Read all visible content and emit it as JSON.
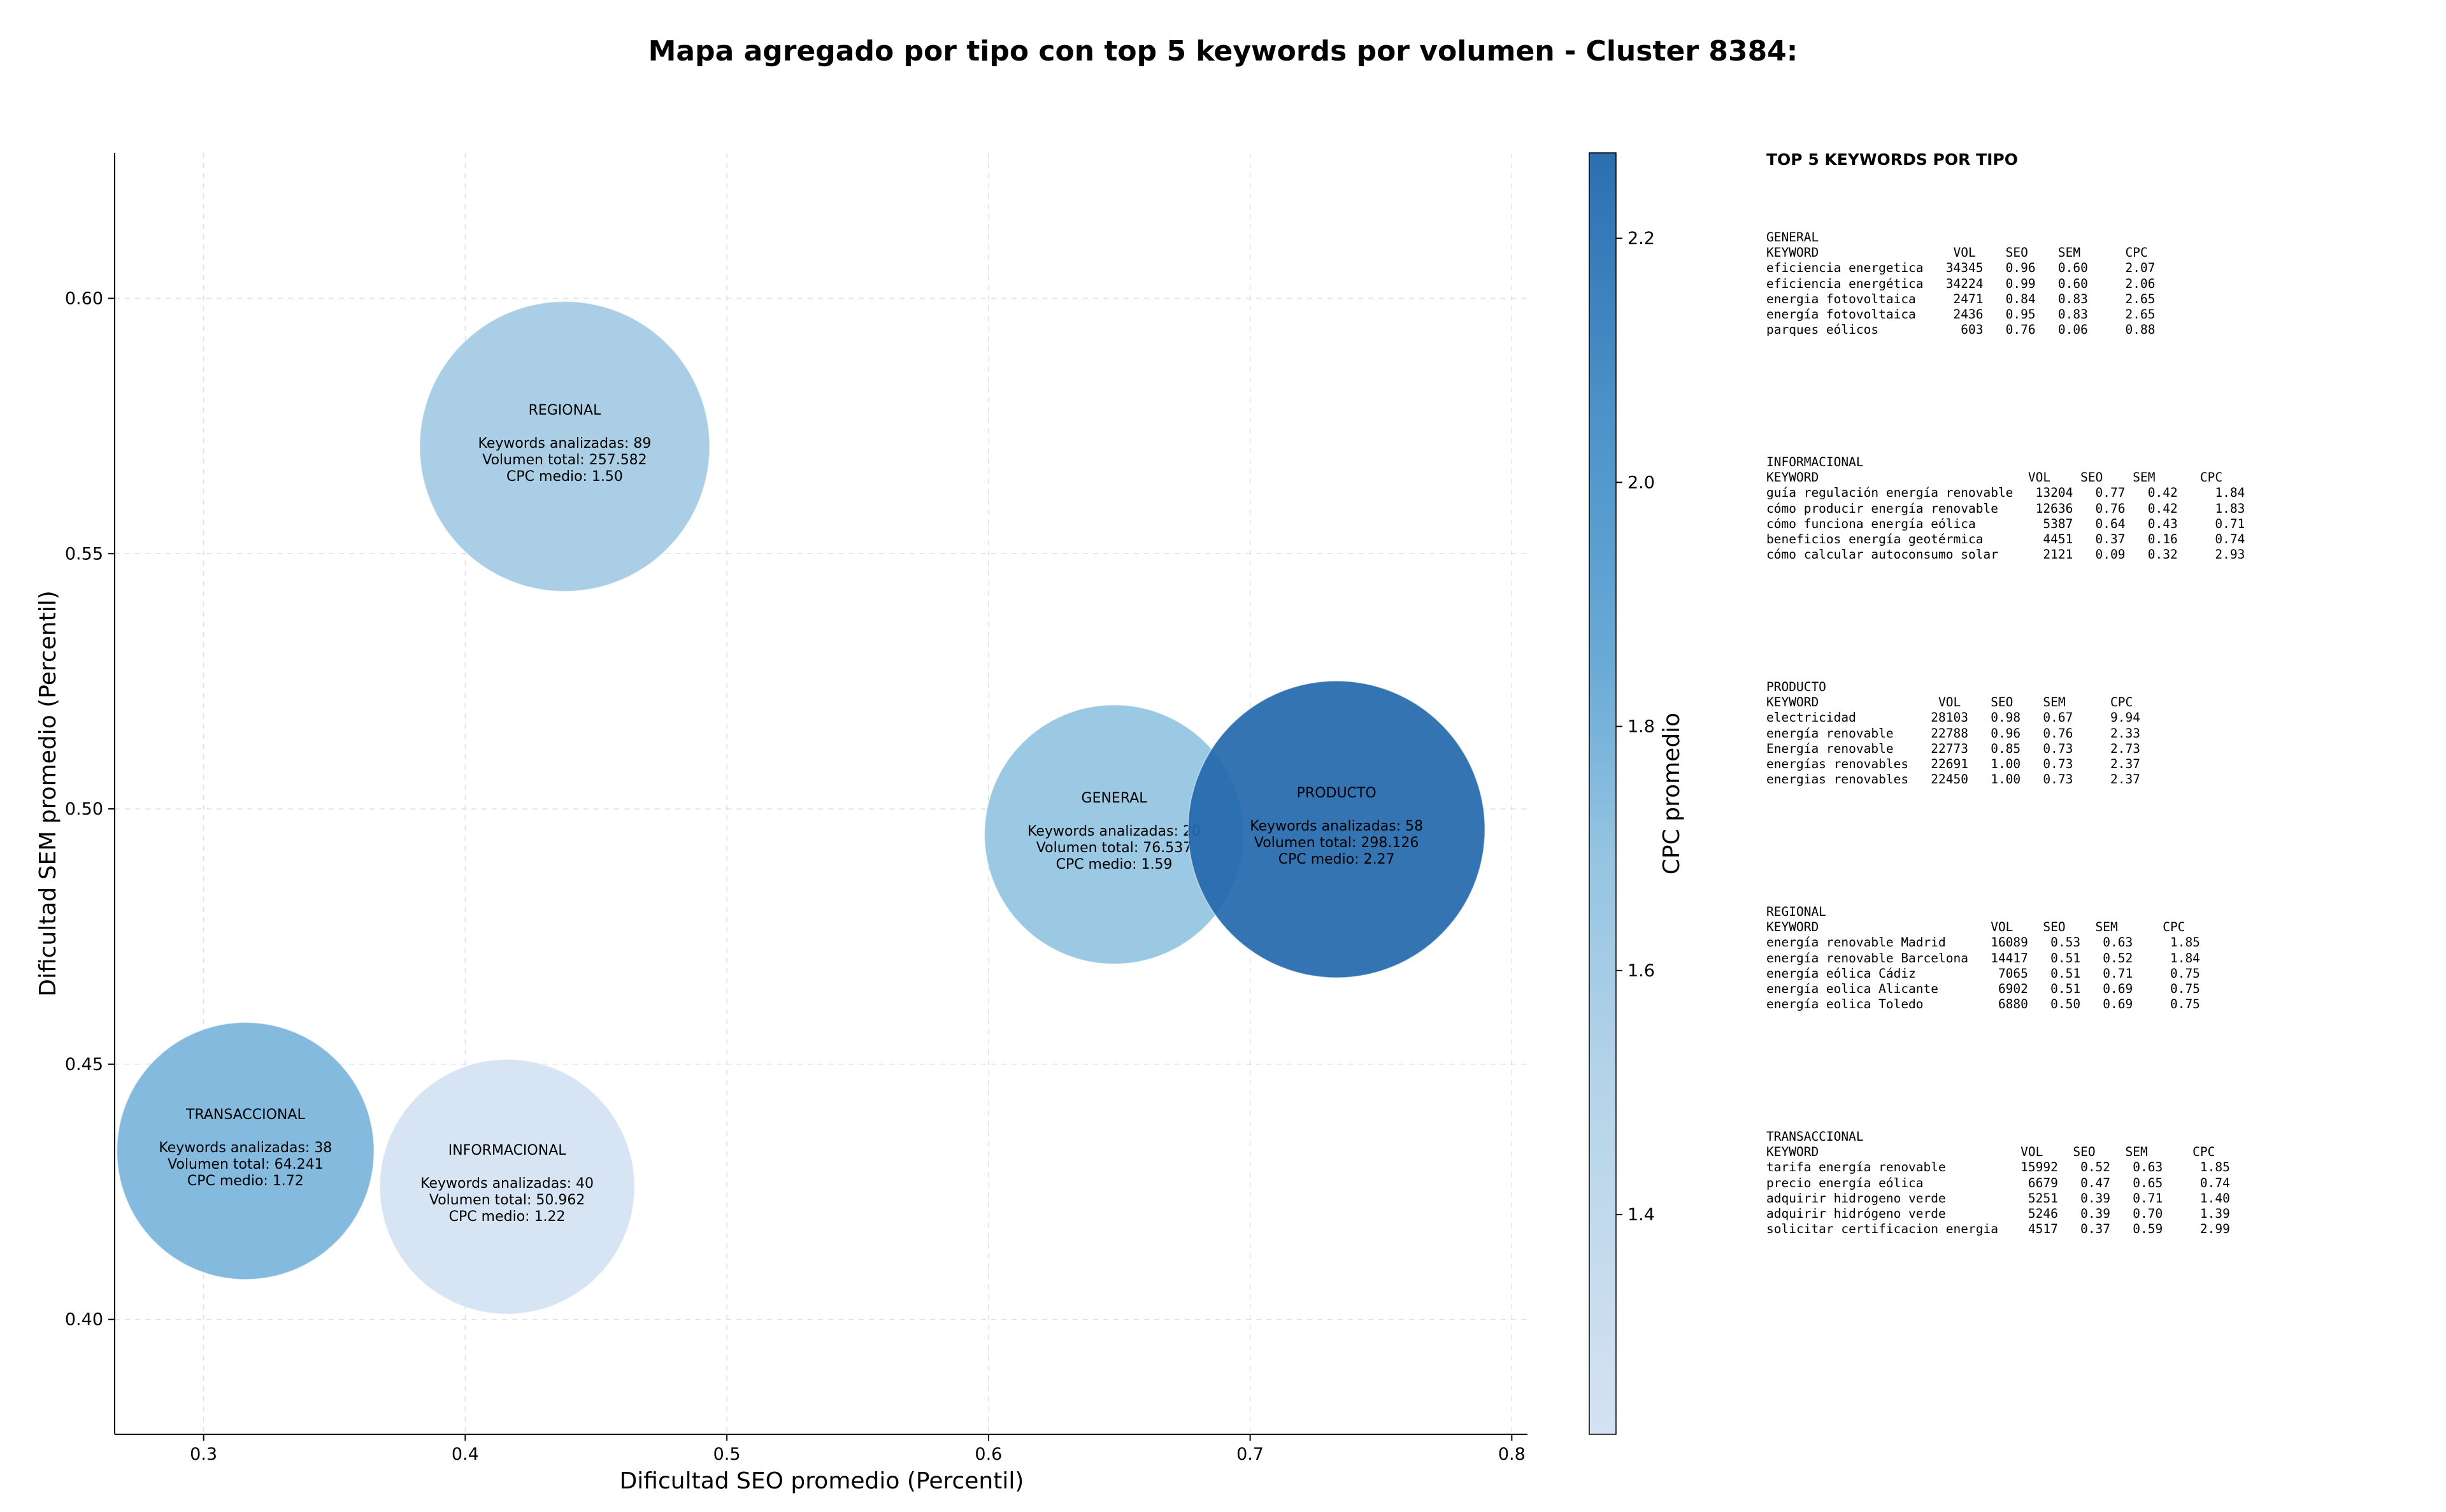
{
  "chart_data": {
    "type": "scatter",
    "title": "Mapa agregado por tipo con top 5 keywords por volumen - Cluster 8384:",
    "xlabel": "Dificultad SEO promedio (Percentil)",
    "ylabel": "Dificultad SEM promedio (Percentil)",
    "xlim": [
      0.266,
      0.806
    ],
    "ylim": [
      0.3775,
      0.6285
    ],
    "xticks": [
      "0.3",
      "0.4",
      "0.5",
      "0.6",
      "0.7",
      "0.8"
    ],
    "yticks": [
      "0.40",
      "0.45",
      "0.50",
      "0.55",
      "0.60"
    ],
    "grid": true,
    "colorbar": {
      "label": "CPC promedio",
      "min": 1.22,
      "max": 2.27,
      "ticks": [
        "1.4",
        "1.6",
        "1.8",
        "2.0",
        "2.2"
      ]
    },
    "points": [
      {
        "name": "REGIONAL",
        "x": 0.438,
        "y": 0.571,
        "cpc": 1.5,
        "keywords_line": "Keywords analizadas: 89",
        "volume_line": "Volumen total: 257.582",
        "cpc_line": "CPC medio: 1.50"
      },
      {
        "name": "GENERAL",
        "x": 0.648,
        "y": 0.495,
        "cpc": 1.59,
        "keywords_line": "Keywords analizadas: 20",
        "volume_line": "Volumen total: 76.537",
        "cpc_line": "CPC medio: 1.59"
      },
      {
        "name": "PRODUCTO",
        "x": 0.733,
        "y": 0.496,
        "cpc": 2.27,
        "keywords_line": "Keywords analizadas: 58",
        "volume_line": "Volumen total: 298.126",
        "cpc_line": "CPC medio: 2.27"
      },
      {
        "name": "TRANSACCIONAL",
        "x": 0.316,
        "y": 0.433,
        "cpc": 1.72,
        "keywords_line": "Keywords analizadas: 38",
        "volume_line": "Volumen total: 64.241",
        "cpc_line": "CPC medio: 1.72"
      },
      {
        "name": "INFORMACIONAL",
        "x": 0.416,
        "y": 0.426,
        "cpc": 1.22,
        "keywords_line": "Keywords analizadas: 40",
        "volume_line": "Volumen total: 50.962",
        "cpc_line": "CPC medio: 1.22"
      }
    ]
  },
  "colors": {
    "colormap": [
      "#d4e2f2",
      "#aed0e6",
      "#8bbfe0",
      "#5fa3d2",
      "#3a87c2",
      "#2468ad"
    ]
  },
  "keywords_panel": {
    "heading": "TOP 5 KEYWORDS POR TIPO",
    "blocks": [
      {
        "id": "general",
        "lines": [
          "GENERAL",
          "KEYWORD                  VOL    SEO    SEM      CPC",
          "eficiencia energetica   34345   0.96   0.60     2.07",
          "eficiencia energética   34224   0.99   0.60     2.06",
          "energia fotovoltaica     2471   0.84   0.83     2.65",
          "energía fotovoltaica     2436   0.95   0.83     2.65",
          "parques eólicos           603   0.76   0.06     0.88"
        ]
      },
      {
        "id": "informacional",
        "lines": [
          "INFORMACIONAL",
          "KEYWORD                            VOL    SEO    SEM      CPC",
          "guía regulación energía renovable   13204   0.77   0.42     1.84",
          "cómo producir energía renovable     12636   0.76   0.42     1.83",
          "cómo funciona energía eólica         5387   0.64   0.43     0.71",
          "beneficios energía geotérmica        4451   0.37   0.16     0.74",
          "cómo calcular autoconsumo solar      2121   0.09   0.32     2.93"
        ]
      },
      {
        "id": "producto",
        "lines": [
          "PRODUCTO",
          "KEYWORD                VOL    SEO    SEM      CPC",
          "electricidad          28103   0.98   0.67     9.94",
          "energía renovable     22788   0.96   0.76     2.33",
          "Energía renovable     22773   0.85   0.73     2.73",
          "energías renovables   22691   1.00   0.73     2.37",
          "energias renovables   22450   1.00   0.73     2.37"
        ]
      },
      {
        "id": "regional",
        "lines": [
          "REGIONAL",
          "KEYWORD                       VOL    SEO    SEM      CPC",
          "energía renovable Madrid      16089   0.53   0.63     1.85",
          "energía renovable Barcelona   14417   0.51   0.52     1.84",
          "energía eólica Cádiz           7065   0.51   0.71     0.75",
          "energía eolica Alicante        6902   0.51   0.69     0.75",
          "energía eolica Toledo          6880   0.50   0.69     0.75"
        ]
      },
      {
        "id": "transaccional",
        "lines": [
          "TRANSACCIONAL",
          "KEYWORD                           VOL    SEO    SEM      CPC",
          "tarifa energía renovable          15992   0.52   0.63     1.85",
          "precio energía eólica              6679   0.47   0.65     0.74",
          "adquirir hidrogeno verde           5251   0.39   0.71     1.40",
          "adquirir hidrógeno verde           5246   0.39   0.70     1.39",
          "solicitar certificacion energia    4517   0.37   0.59     2.99"
        ]
      }
    ]
  }
}
